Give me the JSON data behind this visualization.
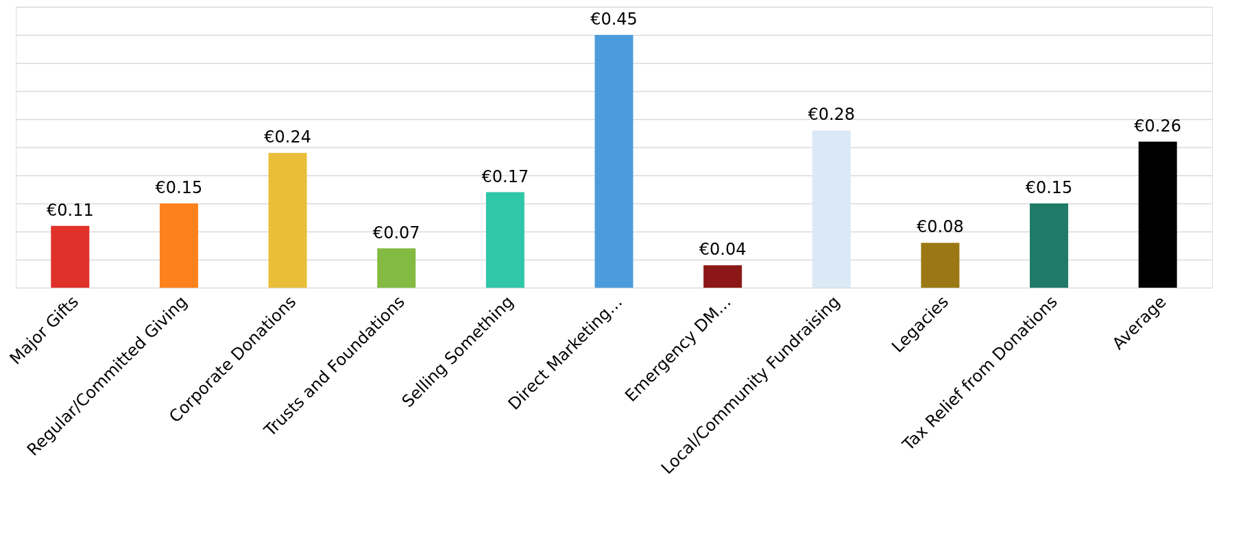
{
  "chart_data": {
    "type": "bar",
    "categories": [
      "Major Gifts",
      "Regular/Committed Giving",
      "Corporate Donations",
      "Trusts and Foundations",
      "Selling Something",
      "Direct Marketing…",
      "Emergency DM…",
      "Local/Community Fundraising",
      "Legacies",
      "Tax Relief from Donations",
      "Average"
    ],
    "values": [
      0.11,
      0.15,
      0.24,
      0.07,
      0.17,
      0.45,
      0.04,
      0.28,
      0.08,
      0.15,
      0.26
    ],
    "value_labels": [
      "€0.11",
      "€0.15",
      "€0.24",
      "€0.07",
      "€0.17",
      "€0.45",
      "€0.04",
      "€0.28",
      "€0.08",
      "€0.15",
      "€0.26"
    ],
    "colors": [
      "#e0312b",
      "#fd811c",
      "#e9be38",
      "#82ba42",
      "#30c6a8",
      "#4c9cdc",
      "#8b1816",
      "#dbe9f6",
      "#9b7813",
      "#1f7a68",
      "#000000"
    ],
    "ylim": [
      0,
      0.5
    ],
    "yticks": [
      {
        "value": 0,
        "label": null
      },
      {
        "value": 0.05,
        "label": null
      },
      {
        "value": 0.1,
        "label": null
      },
      {
        "value": 0.15,
        "label": null
      },
      {
        "value": 0.2,
        "label": null
      },
      {
        "value": 0.25,
        "label": null
      },
      {
        "value": 0.3,
        "label": null
      },
      {
        "value": 0.35,
        "label": null
      },
      {
        "value": 0.4,
        "label": null
      },
      {
        "value": 0.45,
        "label": null
      },
      {
        "value": 0.5,
        "label": null
      }
    ],
    "grid": "y",
    "tick_labels": "x"
  }
}
